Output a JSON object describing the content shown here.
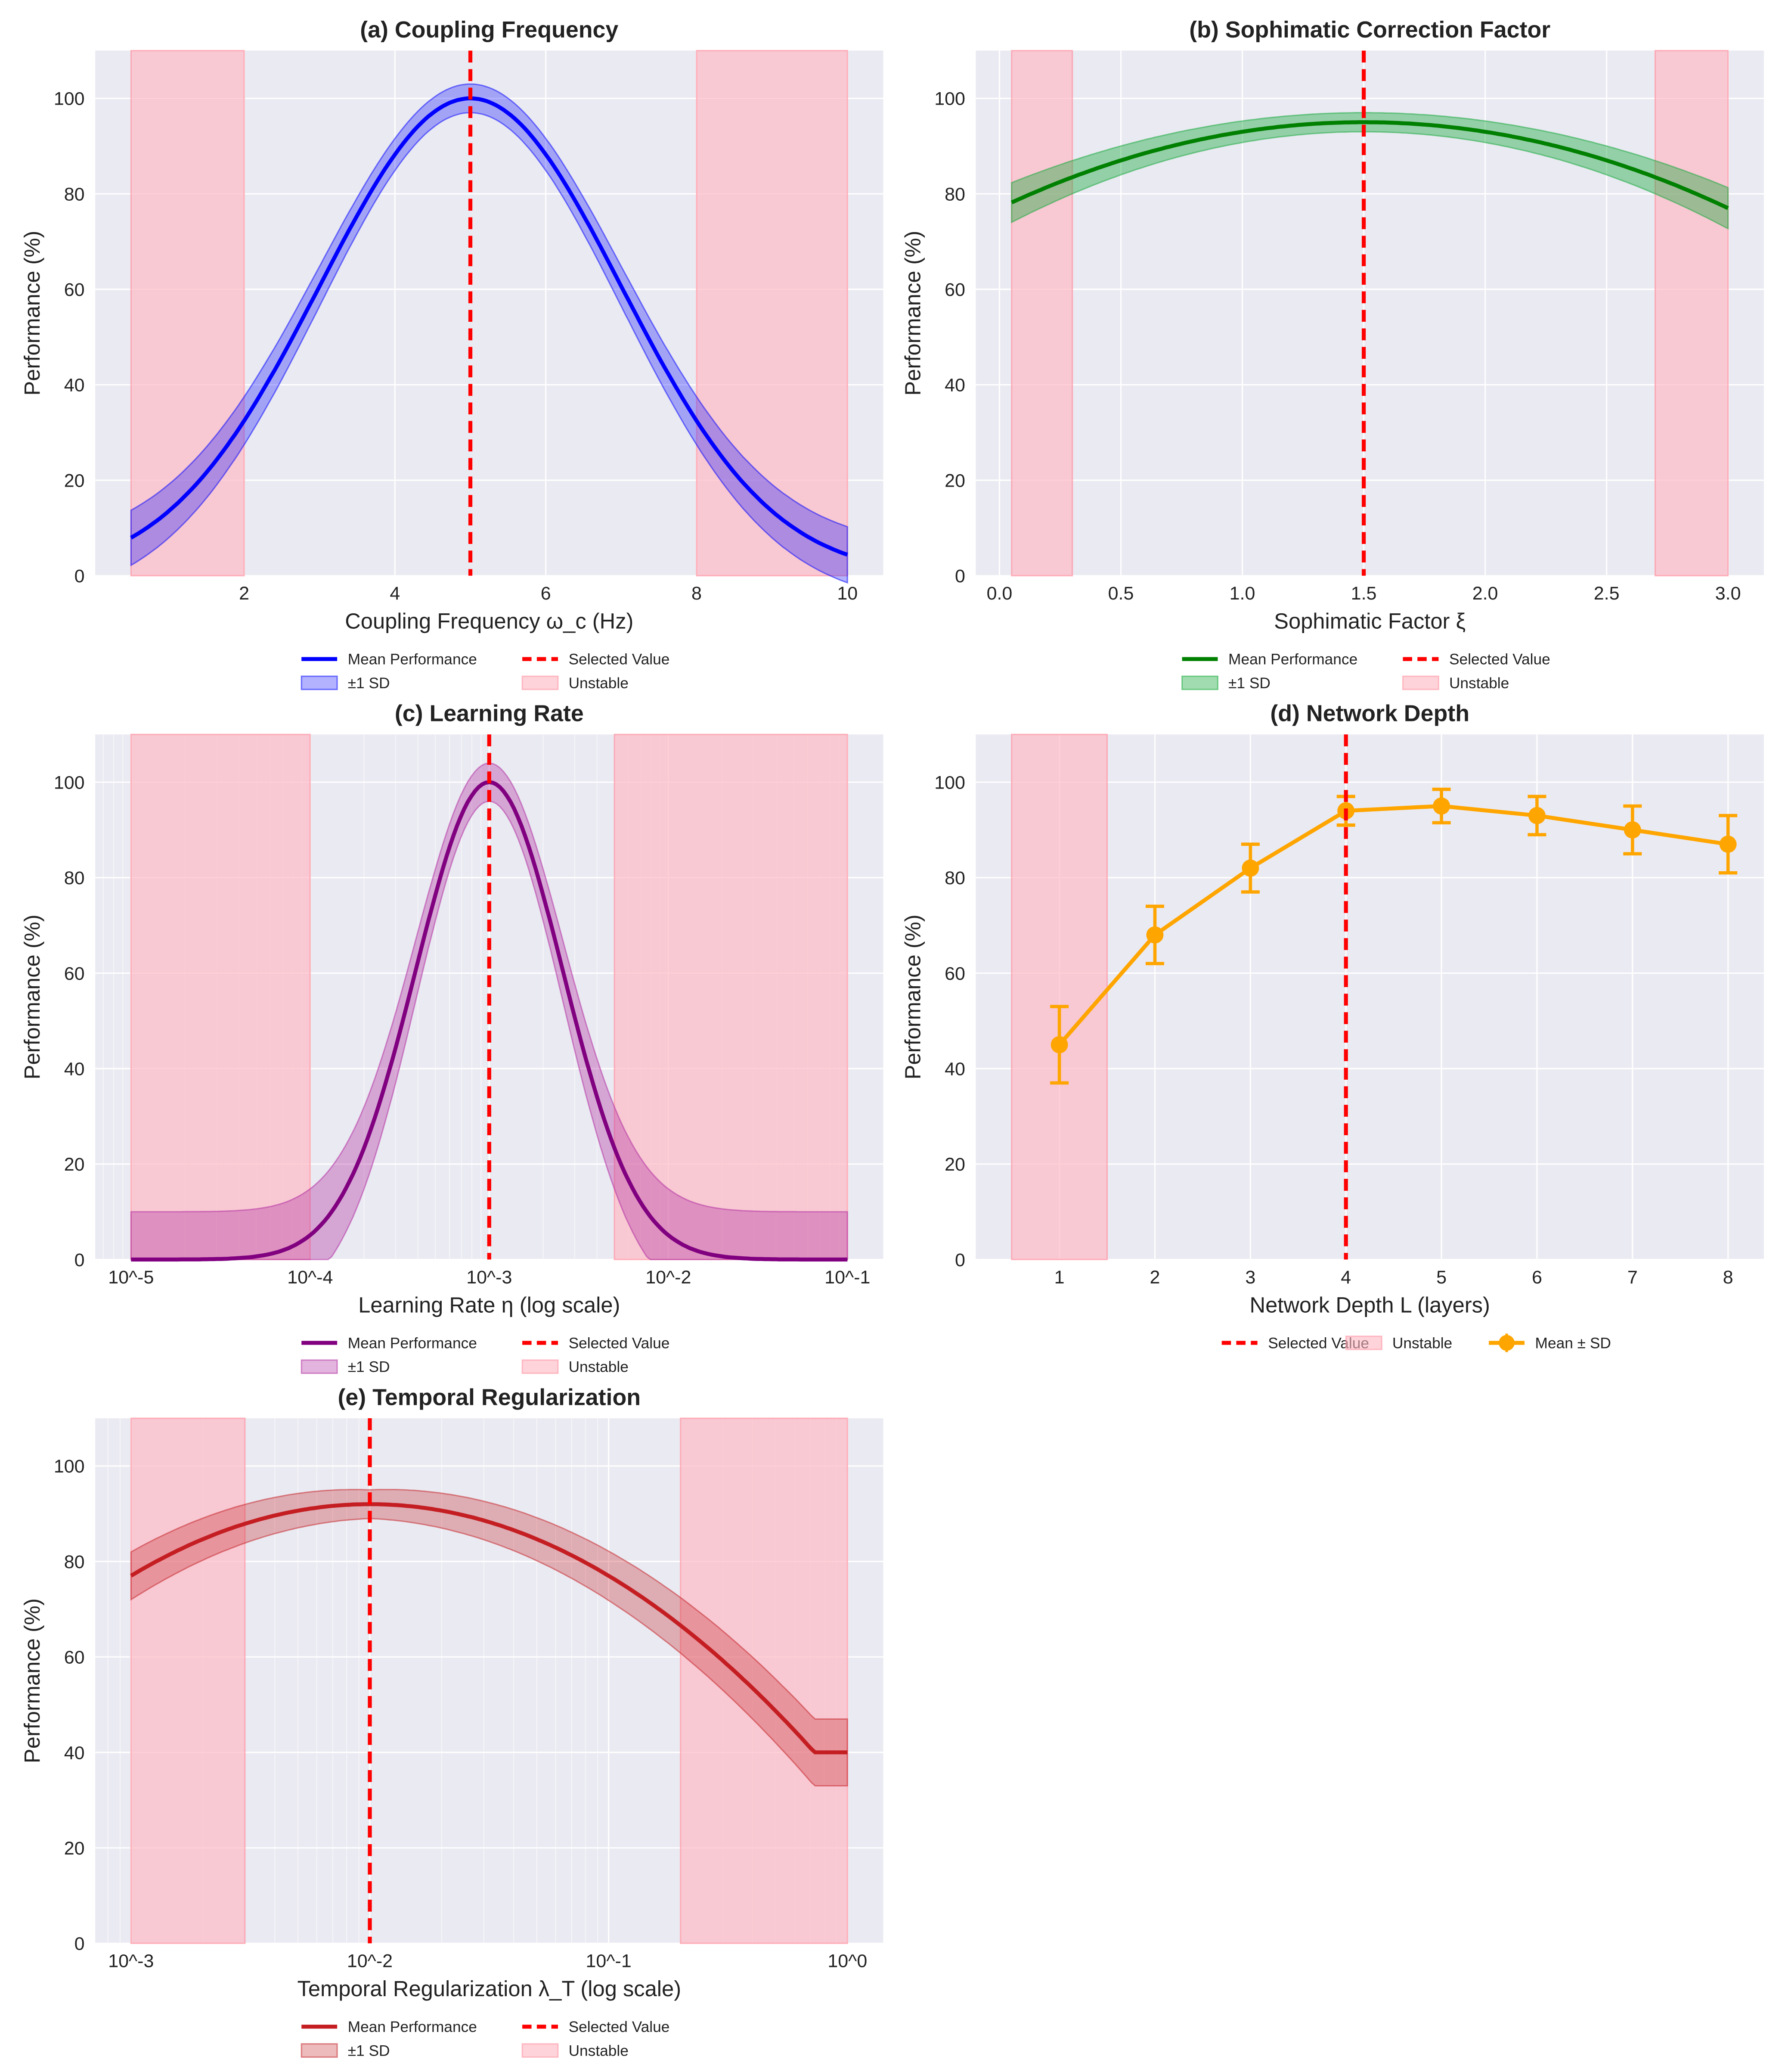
{
  "colors": {
    "background": "#eaeaf2",
    "grid": "#ffffff",
    "unstable_fill": "#ffb6c1",
    "unstable_edge": "#ff8a9a",
    "selected": "#ff0000"
  },
  "chart_data": [
    {
      "id": "a",
      "type": "line",
      "title": "(a) Coupling Frequency",
      "xlabel": "Coupling Frequency ω_c (Hz)",
      "ylabel": "Performance (%)",
      "xscale": "linear",
      "xlim": [
        0.025,
        10.475
      ],
      "ylim": [
        0,
        110
      ],
      "xticks": [
        2,
        4,
        6,
        8,
        10
      ],
      "xtick_labels": [
        "2",
        "4",
        "6",
        "8",
        "10"
      ],
      "yticks": [
        0,
        20,
        40,
        60,
        80,
        100
      ],
      "ytick_labels": [
        "0",
        "20",
        "40",
        "60",
        "80",
        "100"
      ],
      "grid": true,
      "x_range": [
        0.5,
        10
      ],
      "mean_model": {
        "kind": "gaussian",
        "peak": 100,
        "center": 5,
        "sigma": 2
      },
      "sd_model": {
        "at_peak": 3,
        "at_tails": 6
      },
      "selected_value": 5,
      "unstable_regions": [
        [
          0.5,
          2
        ],
        [
          8,
          10
        ]
      ],
      "line_color": "#0000ff",
      "band_color": "#0000ff",
      "band_opacity": 0.3,
      "legend": {
        "placement": "bottom-center",
        "columns": 2,
        "items": [
          "Mean Performance",
          "Selected Value",
          "±1 SD",
          "Unstable"
        ]
      }
    },
    {
      "id": "b",
      "type": "line",
      "title": "(b) Sophimatic Correction Factor",
      "xlabel": "Sophimatic Factor ξ",
      "ylabel": "Performance (%)",
      "xscale": "linear",
      "xlim": [
        -0.0975,
        3.1475
      ],
      "ylim": [
        0,
        110
      ],
      "xticks": [
        0,
        0.5,
        1,
        1.5,
        2,
        2.5,
        3
      ],
      "xtick_labels": [
        "0.0",
        "0.5",
        "1.0",
        "1.5",
        "2.0",
        "2.5",
        "3.0"
      ],
      "yticks": [
        0,
        20,
        40,
        60,
        80,
        100
      ],
      "ytick_labels": [
        "0",
        "20",
        "40",
        "60",
        "80",
        "100"
      ],
      "grid": true,
      "x_range": [
        0.05,
        3.0
      ],
      "mean_model": {
        "kind": "quadratic",
        "peak": 95,
        "center": 1.5,
        "curvature": 8
      },
      "sd_model": {
        "at_peak": 2,
        "at_tails": 4.3
      },
      "selected_value": 1.5,
      "unstable_regions": [
        [
          0.05,
          0.3
        ],
        [
          2.7,
          3.0
        ]
      ],
      "line_color": "#008000",
      "band_color": "#11a838",
      "band_opacity": 0.4,
      "legend": {
        "placement": "bottom-center",
        "columns": 2,
        "items": [
          "Mean Performance",
          "Selected Value",
          "±1 SD",
          "Unstable"
        ]
      }
    },
    {
      "id": "c",
      "type": "line",
      "title": "(c) Learning Rate",
      "xlabel": "Learning Rate η (log scale)",
      "ylabel": "Performance (%)",
      "xscale": "log",
      "xlim": [
        6.31e-06,
        0.1585
      ],
      "ylim": [
        0,
        110
      ],
      "xticks": [
        1e-05,
        0.0001,
        0.001,
        0.01,
        0.1
      ],
      "xtick_labels": [
        "10^-5",
        "10^-4",
        "10^-3",
        "10^-2",
        "10^-1"
      ],
      "yticks": [
        0,
        20,
        40,
        60,
        80,
        100
      ],
      "ytick_labels": [
        "0",
        "20",
        "40",
        "60",
        "80",
        "100"
      ],
      "grid": true,
      "x_range": [
        1e-05,
        0.1
      ],
      "mean_model": {
        "kind": "log-gaussian",
        "peak": 100,
        "center": 0.001,
        "sigma_decades": 0.41
      },
      "sd_model": {
        "at_peak": 4,
        "at_tails": 10,
        "clip_lower": 0
      },
      "selected_value": 0.001,
      "unstable_regions": [
        [
          1e-05,
          0.0001
        ],
        [
          0.005,
          0.1
        ]
      ],
      "line_color": "#800080",
      "band_color": "#b0289f",
      "band_opacity": 0.35,
      "legend": {
        "placement": "bottom-center",
        "columns": 2,
        "items": [
          "Mean Performance",
          "Selected Value",
          "±1 SD",
          "Unstable"
        ]
      }
    },
    {
      "id": "d",
      "type": "errorbar",
      "title": "(d) Network Depth",
      "xlabel": "Network Depth L (layers)",
      "ylabel": "Performance (%)",
      "xscale": "linear",
      "xlim": [
        0.125,
        8.375
      ],
      "ylim": [
        0,
        110
      ],
      "xticks": [
        1,
        2,
        3,
        4,
        5,
        6,
        7,
        8
      ],
      "xtick_labels": [
        "1",
        "2",
        "3",
        "4",
        "5",
        "6",
        "7",
        "8"
      ],
      "yticks": [
        0,
        20,
        40,
        60,
        80,
        100
      ],
      "ytick_labels": [
        "0",
        "20",
        "40",
        "60",
        "80",
        "100"
      ],
      "grid": true,
      "x": [
        1,
        2,
        3,
        4,
        5,
        6,
        7,
        8
      ],
      "values": [
        45,
        68,
        82,
        94,
        95,
        93,
        90,
        87
      ],
      "sd": [
        8,
        6,
        5,
        3,
        3.5,
        4,
        5,
        6
      ],
      "selected_value": 4,
      "unstable_regions": [
        [
          0.5,
          1.5
        ]
      ],
      "line_color": "#ffa500",
      "legend": {
        "placement": "bottom-center",
        "columns": 3,
        "items": [
          "Selected Value",
          "Unstable",
          "Mean ± SD"
        ]
      }
    },
    {
      "id": "e",
      "type": "line",
      "title": "(e) Temporal Regularization",
      "xlabel": "Temporal Regularization λ_T (log scale)",
      "ylabel": "Performance (%)",
      "xscale": "log",
      "xlim": [
        0.000708,
        1.4125
      ],
      "ylim": [
        0,
        110
      ],
      "xticks": [
        0.001,
        0.01,
        0.1,
        1
      ],
      "xtick_labels": [
        "10^-3",
        "10^-2",
        "10^-1",
        "10^0"
      ],
      "yticks": [
        0,
        20,
        40,
        60,
        80,
        100
      ],
      "ytick_labels": [
        "0",
        "20",
        "40",
        "60",
        "80",
        "100"
      ],
      "grid": true,
      "x_range": [
        0.001,
        1
      ],
      "mean_model": {
        "kind": "log-quadratic-floor",
        "peak": 92,
        "center": 0.01,
        "curvature_per_decade2": 15,
        "floor": 40
      },
      "sd_model": {
        "at_peak": 3,
        "at_start": 5,
        "at_end": 7
      },
      "selected_value": 0.01,
      "unstable_regions": [
        [
          0.001,
          0.003
        ],
        [
          0.2,
          1
        ]
      ],
      "line_color": "#c41e22",
      "band_color": "#c41e22",
      "band_opacity": 0.3,
      "legend": {
        "placement": "bottom-center",
        "columns": 2,
        "items": [
          "Mean Performance",
          "Selected Value",
          "±1 SD",
          "Unstable"
        ]
      }
    }
  ]
}
